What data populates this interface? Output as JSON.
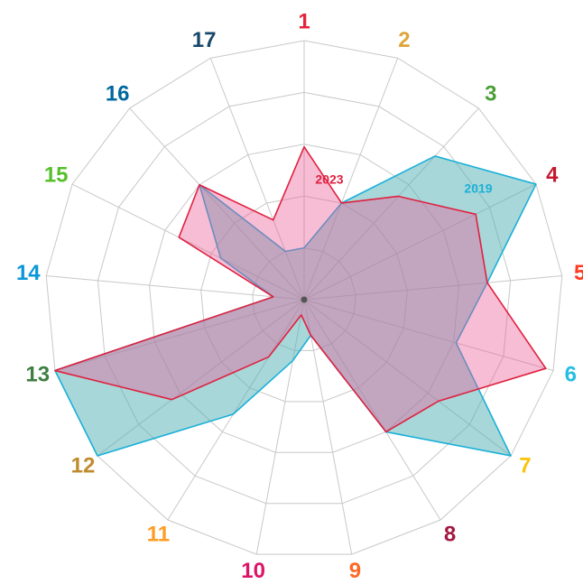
{
  "chart_data": {
    "type": "radar",
    "categories": [
      "1",
      "2",
      "3",
      "4",
      "5",
      "6",
      "7",
      "8",
      "9",
      "10",
      "11",
      "12",
      "13",
      "14",
      "15",
      "16",
      "17"
    ],
    "label_colors": [
      "#e5243b",
      "#dda63a",
      "#4c9f38",
      "#c5192d",
      "#ff3a21",
      "#26bde2",
      "#fcc30b",
      "#a21942",
      "#fd6925",
      "#dd1367",
      "#fd9d24",
      "#bf8b2e",
      "#3f7e44",
      "#0a97d9",
      "#56c02b",
      "#00689d",
      "#19486a"
    ],
    "series": [
      {
        "name": "2019",
        "color": "#1ab0d8",
        "fill": "rgba(80,175,180,0.5)",
        "values": [
          1.0,
          2.0,
          3.75,
          5.0,
          3.55,
          3.05,
          5.0,
          3.0,
          0.7,
          1.2,
          2.6,
          5.0,
          5.0,
          0.6,
          1.8,
          3.0,
          1.0
        ]
      },
      {
        "name": "2023",
        "color": "#e0203f",
        "fill": "rgba(235,90,150,0.4)",
        "values": [
          2.95,
          2.0,
          2.7,
          3.7,
          3.55,
          4.85,
          3.25,
          3.0,
          0.7,
          0.3,
          1.3,
          3.2,
          5.0,
          0.6,
          2.7,
          3.0,
          1.65
        ]
      }
    ],
    "ylim": [
      0,
      5
    ],
    "yticks": [
      1,
      2,
      3,
      4,
      5
    ],
    "grid": true
  }
}
